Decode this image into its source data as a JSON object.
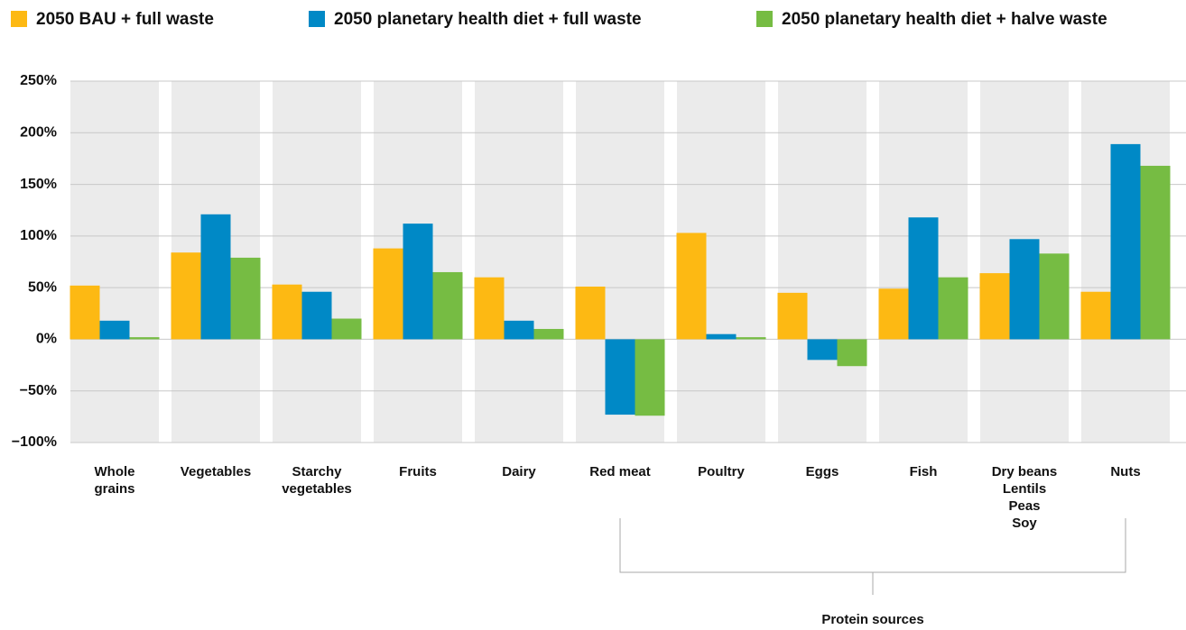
{
  "chart_data": {
    "type": "bar",
    "categories": [
      [
        "Whole",
        "grains"
      ],
      [
        "Vegetables"
      ],
      [
        "Starchy",
        "vegetables"
      ],
      [
        "Fruits"
      ],
      [
        "Dairy"
      ],
      [
        "Red meat"
      ],
      [
        "Poultry"
      ],
      [
        "Eggs"
      ],
      [
        "Fish"
      ],
      [
        "Dry beans",
        "Lentils",
        "Peas",
        "Soy"
      ],
      [
        "Nuts"
      ]
    ],
    "series": [
      {
        "name": "2050 BAU + full waste",
        "color": "#fdb913",
        "values": [
          52,
          84,
          53,
          88,
          60,
          51,
          103,
          45,
          49,
          64,
          46
        ]
      },
      {
        "name": "2050 planetary health diet + full waste",
        "color": "#0089c6",
        "values": [
          18,
          121,
          46,
          112,
          18,
          -73,
          5,
          -20,
          118,
          97,
          189
        ]
      },
      {
        "name": "2050 planetary health diet + halve waste",
        "color": "#76bc43",
        "values": [
          2,
          79,
          20,
          65,
          10,
          -74,
          2,
          -26,
          60,
          83,
          168
        ]
      }
    ],
    "ylim": [
      -100,
      250
    ],
    "yticks": [
      {
        "value": -100,
        "label": "−100%"
      },
      {
        "value": -50,
        "label": "−50%"
      },
      {
        "value": 0,
        "label": "0%"
      },
      {
        "value": 50,
        "label": "50%"
      },
      {
        "value": 100,
        "label": "100%"
      },
      {
        "value": 150,
        "label": "150%"
      },
      {
        "value": 200,
        "label": "200%"
      },
      {
        "value": 250,
        "label": "250%"
      }
    ],
    "grid": true,
    "annotation": "Protein sources"
  }
}
